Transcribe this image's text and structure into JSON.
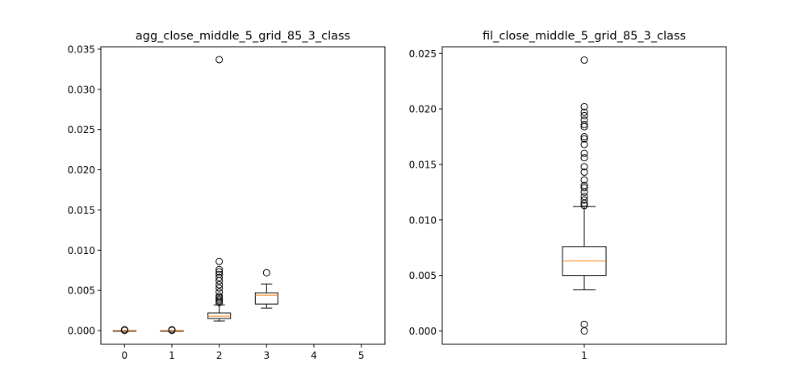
{
  "chart_data": [
    {
      "type": "box",
      "title": "agg_close_middle_5_grid_85_3_class",
      "xlabel": "",
      "ylabel": "",
      "xlim": [
        -0.5,
        5.5
      ],
      "ylim": [
        -0.0017,
        0.0353
      ],
      "x_ticks": [
        "0",
        "1",
        "2",
        "3",
        "4",
        "5"
      ],
      "y_ticks": [
        "0.000",
        "0.005",
        "0.010",
        "0.015",
        "0.020",
        "0.025",
        "0.030",
        "0.035"
      ],
      "y_tick_values": [
        0.0,
        0.005,
        0.01,
        0.015,
        0.02,
        0.025,
        0.03,
        0.035
      ],
      "boxes": [
        {
          "x": 0,
          "whisker_low": 0.0,
          "q1": 0.0,
          "median": 0.0,
          "q3": 0.0,
          "whisker_high": 0.0,
          "fliers": [
            3e-05,
            7e-05,
            0.0001
          ]
        },
        {
          "x": 1,
          "whisker_low": 0.0,
          "q1": 0.0,
          "median": 0.0,
          "q3": 0.0,
          "whisker_high": 0.0,
          "fliers": [
            3e-05,
            7e-05,
            0.0001
          ]
        },
        {
          "x": 2,
          "whisker_low": 0.0012,
          "q1": 0.0015,
          "median": 0.0018,
          "q3": 0.0022,
          "whisker_high": 0.0032,
          "fliers": [
            0.0035,
            0.0037,
            0.0039,
            0.0041,
            0.0043,
            0.0048,
            0.0053,
            0.0057,
            0.0062,
            0.0066,
            0.007,
            0.0073,
            0.0076,
            0.0086,
            0.0337
          ]
        },
        {
          "x": 3,
          "whisker_low": 0.0028,
          "q1": 0.0033,
          "median": 0.0044,
          "q3": 0.0047,
          "whisker_high": 0.0058,
          "fliers": [
            0.0072
          ]
        }
      ]
    },
    {
      "type": "box",
      "title": "fil_close_middle_5_grid_85_3_class",
      "xlabel": "",
      "ylabel": "",
      "xlim": [
        0.5,
        1.5
      ],
      "ylim": [
        -0.0012,
        0.0256
      ],
      "x_ticks": [
        "1"
      ],
      "y_ticks": [
        "0.000",
        "0.005",
        "0.010",
        "0.015",
        "0.020",
        "0.025"
      ],
      "y_tick_values": [
        0.0,
        0.005,
        0.01,
        0.015,
        0.02,
        0.025
      ],
      "boxes": [
        {
          "x": 1,
          "whisker_low": 0.0037,
          "q1": 0.005,
          "median": 0.0063,
          "q3": 0.0076,
          "whisker_high": 0.0112,
          "fliers": [
            0.0,
            0.0006,
            0.0113,
            0.0115,
            0.0118,
            0.0121,
            0.0125,
            0.0129,
            0.0131,
            0.0136,
            0.0143,
            0.0148,
            0.0156,
            0.016,
            0.0168,
            0.0173,
            0.0175,
            0.0184,
            0.0186,
            0.019,
            0.0194,
            0.0197,
            0.0202,
            0.0244
          ]
        }
      ]
    }
  ],
  "colors": {
    "median": "#ff7f0e",
    "box": "#000000",
    "axes": "#000000"
  }
}
